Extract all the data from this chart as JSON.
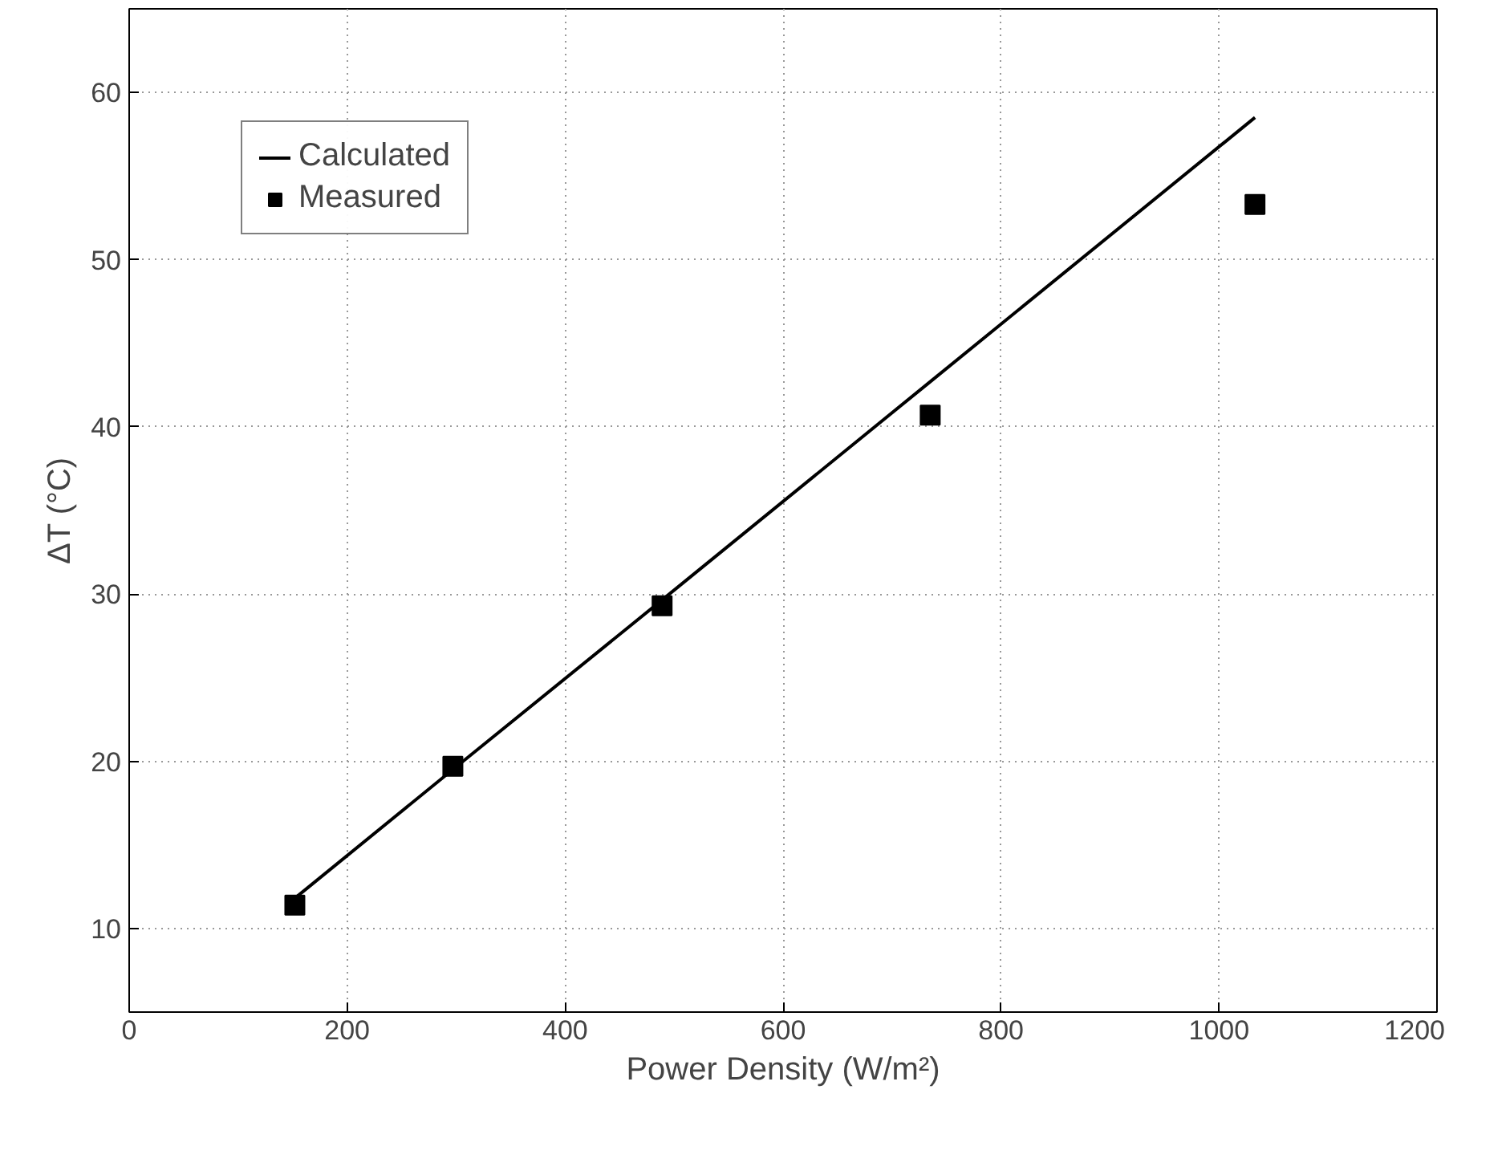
{
  "chart_data": {
    "type": "scatter",
    "xlabel": "Power Density (W/m²)",
    "ylabel": "ΔT (°C)",
    "xlim": [
      0,
      1200
    ],
    "xticks": [
      0,
      200,
      400,
      600,
      800,
      1000,
      1200
    ],
    "ylim": [
      5,
      65
    ],
    "yticks": [
      10,
      20,
      30,
      40,
      50,
      60
    ],
    "grid": true,
    "legend": "top left",
    "series": [
      {
        "name": "Calculated",
        "type": "line",
        "color": "#000000",
        "line_style": "solid",
        "x": [
          150,
          295,
          490,
          735,
          1033
        ],
        "values": [
          11.7,
          19.4,
          29.7,
          42.7,
          58.5
        ]
      },
      {
        "name": "Measured",
        "color": "#000000",
        "marker": "square",
        "x": [
          152,
          297,
          489,
          735,
          1033
        ],
        "values": [
          11.4,
          19.7,
          29.3,
          40.7,
          53.3
        ]
      }
    ]
  }
}
